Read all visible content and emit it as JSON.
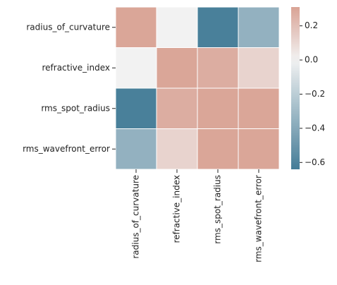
{
  "chart_data": {
    "type": "heatmap",
    "title": "",
    "xlabel": "",
    "ylabel": "",
    "rows": [
      "radius_of_curvature",
      "refractive_index",
      "rms_spot_radius",
      "rms_wavefront_error"
    ],
    "columns": [
      "radius_of_curvature",
      "refractive_index",
      "rms_spot_radius",
      "rms_wavefront_error"
    ],
    "values": [
      [
        0.3,
        0.0,
        -0.62,
        -0.35
      ],
      [
        0.0,
        0.3,
        0.27,
        0.12
      ],
      [
        -0.62,
        0.27,
        0.3,
        0.3
      ],
      [
        -0.35,
        0.12,
        0.3,
        0.3
      ]
    ],
    "colorbar": {
      "min": -0.64,
      "max": 0.31,
      "ticks": [
        0.2,
        0.0,
        -0.2,
        -0.4,
        -0.6
      ],
      "tick_labels": [
        "0.2",
        "0.0",
        "−0.2",
        "−0.4",
        "−0.6"
      ]
    },
    "colormap": {
      "low": "#447c97",
      "mid": "#f2f2f2",
      "high": "#d9a395"
    },
    "grid": true,
    "gridline_color": "#ffffff"
  }
}
